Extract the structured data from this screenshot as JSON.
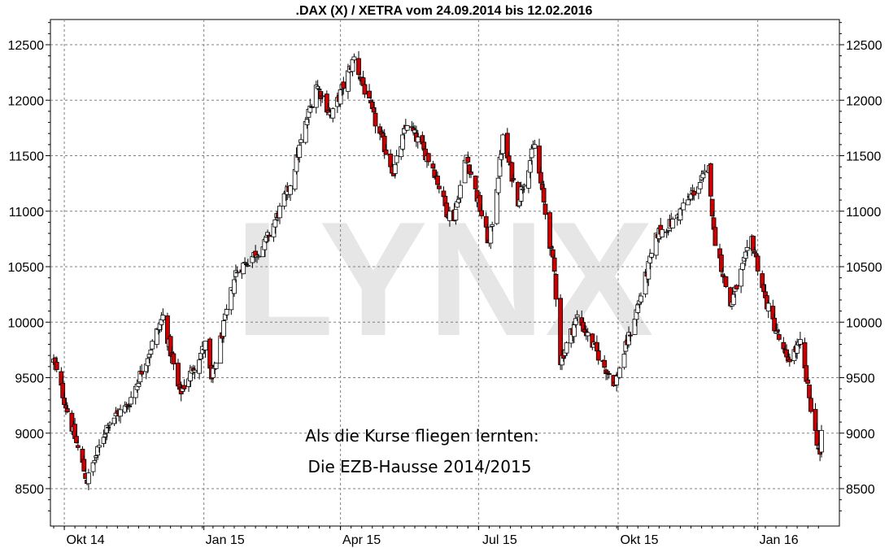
{
  "chart_data": {
    "type": "candlestick",
    "title": ".DAX (X) / XETRA vom 24.09.2014 bis 12.02.2016",
    "watermark": "LYNX",
    "annotation": [
      "Als die Kurse fliegen lernten:",
      "Die EZB-Hausse 2014/2015"
    ],
    "x_ticks": [
      {
        "date": "2014-10-01",
        "label": "Okt 14"
      },
      {
        "date": "2015-01-01",
        "label": "Jan 15"
      },
      {
        "date": "2015-04-01",
        "label": "Apr 15"
      },
      {
        "date": "2015-07-01",
        "label": "Jul 15"
      },
      {
        "date": "2015-10-01",
        "label": "Okt 15"
      },
      {
        "date": "2016-01-01",
        "label": "Jan 16"
      }
    ],
    "y_ticks": [
      8500,
      9000,
      9500,
      10000,
      10500,
      11000,
      11500,
      12000,
      12500
    ],
    "ylim": [
      8250,
      12750
    ],
    "x_range": [
      "2014-09-24",
      "2016-02-12"
    ],
    "y_axes": "left-and-right",
    "grid": true,
    "colors": {
      "up": "#ffffff",
      "down": "#cc0000",
      "outline": "#000000",
      "grid": "#808080"
    },
    "series": [
      {
        "close_path": [
          [
            "2014-09-24",
            9650
          ],
          [
            "2014-10-03",
            9200
          ],
          [
            "2014-10-16",
            8570
          ],
          [
            "2014-10-30",
            9100
          ],
          [
            "2014-11-12",
            9250
          ],
          [
            "2014-12-05",
            10050
          ],
          [
            "2014-12-16",
            9350
          ],
          [
            "2015-01-02",
            9800
          ],
          [
            "2015-01-06",
            9470
          ],
          [
            "2015-01-22",
            10450
          ],
          [
            "2015-02-10",
            10700
          ],
          [
            "2015-02-26",
            11200
          ],
          [
            "2015-03-16",
            12150
          ],
          [
            "2015-03-26",
            11850
          ],
          [
            "2015-04-10",
            12380
          ],
          [
            "2015-04-24",
            11800
          ],
          [
            "2015-05-06",
            11350
          ],
          [
            "2015-05-15",
            11800
          ],
          [
            "2015-06-01",
            11400
          ],
          [
            "2015-06-10",
            11000
          ],
          [
            "2015-06-15",
            10950
          ],
          [
            "2015-06-23",
            11500
          ],
          [
            "2015-07-08",
            10700
          ],
          [
            "2015-07-17",
            11650
          ],
          [
            "2015-07-27",
            11100
          ],
          [
            "2015-08-07",
            11600
          ],
          [
            "2015-08-20",
            10450
          ],
          [
            "2015-08-24",
            9650
          ],
          [
            "2015-09-04",
            10050
          ],
          [
            "2015-09-22",
            9600
          ],
          [
            "2015-09-29",
            9450
          ],
          [
            "2015-10-12",
            10050
          ],
          [
            "2015-10-27",
            10800
          ],
          [
            "2015-11-06",
            10900
          ],
          [
            "2015-11-30",
            11380
          ],
          [
            "2015-12-03",
            10800
          ],
          [
            "2015-12-14",
            10150
          ],
          [
            "2015-12-28",
            10750
          ],
          [
            "2016-01-06",
            10200
          ],
          [
            "2016-01-20",
            9650
          ],
          [
            "2016-01-29",
            9800
          ],
          [
            "2016-02-08",
            9000
          ],
          [
            "2016-02-11",
            8800
          ],
          [
            "2016-02-12",
            8970
          ]
        ]
      }
    ]
  }
}
